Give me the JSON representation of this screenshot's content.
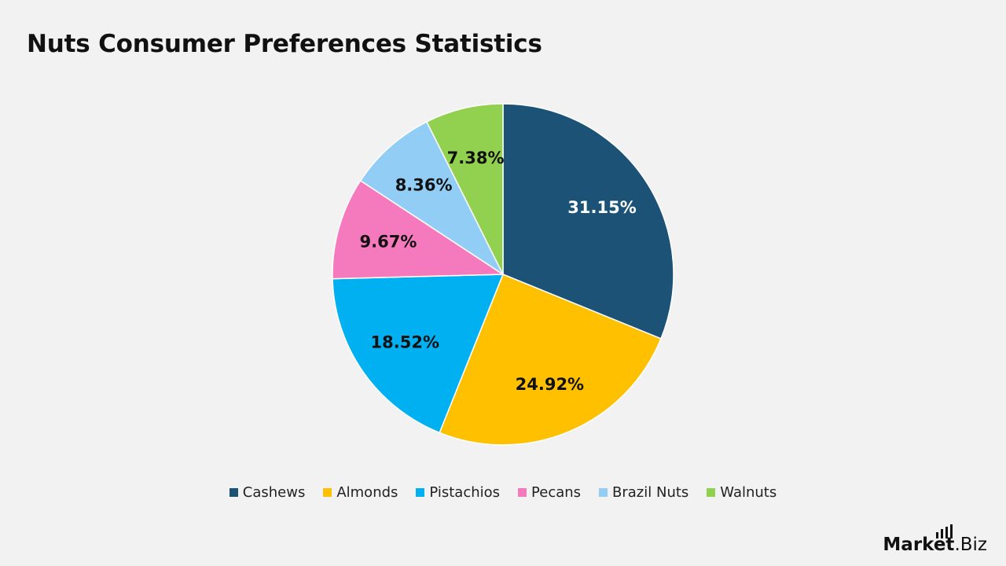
{
  "title": "Nuts Consumer Preferences Statistics",
  "chart_data": {
    "type": "pie",
    "title": "Nuts Consumer Preferences Statistics",
    "slices": [
      {
        "name": "Cashews",
        "value": 31.15,
        "label": "31.15%",
        "color": "#1b5276",
        "label_color": "#ffffff"
      },
      {
        "name": "Almonds",
        "value": 24.92,
        "label": "24.92%",
        "color": "#ffc000",
        "label_color": "#111111"
      },
      {
        "name": "Pistachios",
        "value": 18.52,
        "label": "18.52%",
        "color": "#00b0f0",
        "label_color": "#111111"
      },
      {
        "name": "Pecans",
        "value": 9.67,
        "label": "9.67%",
        "color": "#f57abd",
        "label_color": "#111111"
      },
      {
        "name": "Brazil Nuts",
        "value": 8.36,
        "label": "8.36%",
        "color": "#92cdf5",
        "label_color": "#111111"
      },
      {
        "name": "Walnuts",
        "value": 7.38,
        "label": "7.38%",
        "color": "#92d050",
        "label_color": "#111111"
      }
    ],
    "start": "top",
    "direction": "clockwise",
    "legend_position": "bottom"
  },
  "branding": {
    "logo_main": "Market",
    "logo_suffix": ".Biz"
  }
}
